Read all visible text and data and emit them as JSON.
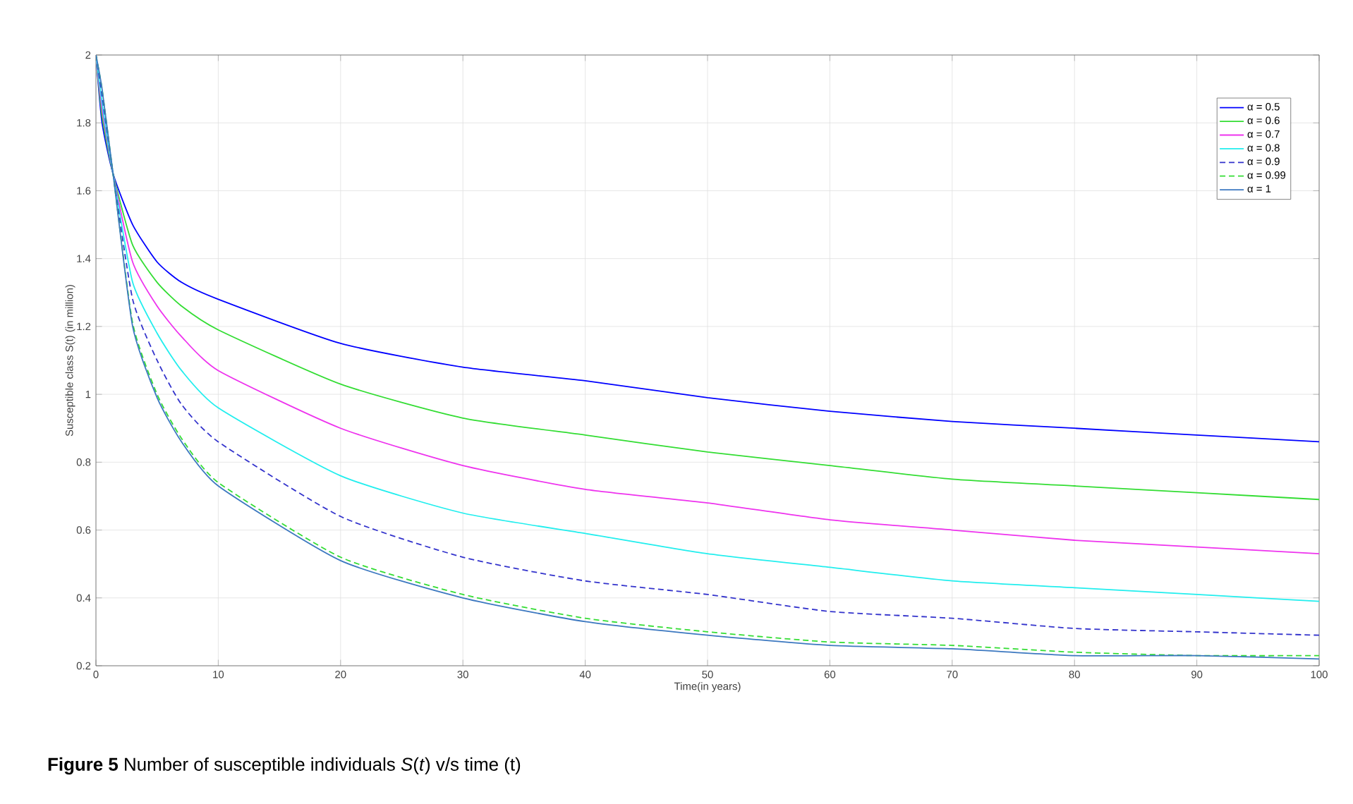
{
  "chart_data": {
    "type": "line",
    "xlabel": "Time(in years)",
    "ylabel": "Susceptible class S(t) (in million)",
    "annotations": [
      "**Figure 5**  Number of susceptible individuals *S*(*t*) v/s time (t)"
    ],
    "x": [
      0,
      0.5,
      1.4,
      3,
      5,
      7,
      10,
      20,
      30,
      40,
      50,
      60,
      70,
      80,
      90,
      100
    ],
    "series": [
      {
        "name": "α = 0.5",
        "color": "#0000ff",
        "line_style": "solid",
        "values": [
          2.0,
          1.8,
          1.65,
          1.5,
          1.39,
          1.33,
          1.28,
          1.15,
          1.08,
          1.04,
          0.99,
          0.95,
          0.92,
          0.9,
          0.88,
          0.86
        ]
      },
      {
        "name": "α = 0.6",
        "color": "#33dd33",
        "line_style": "solid",
        "values": [
          2.0,
          1.82,
          1.65,
          1.44,
          1.33,
          1.26,
          1.19,
          1.03,
          0.93,
          0.88,
          0.83,
          0.79,
          0.75,
          0.73,
          0.71,
          0.69
        ]
      },
      {
        "name": "α = 0.7",
        "color": "#ee33ee",
        "line_style": "solid",
        "values": [
          2.0,
          1.84,
          1.65,
          1.39,
          1.26,
          1.17,
          1.07,
          0.9,
          0.79,
          0.72,
          0.68,
          0.63,
          0.6,
          0.57,
          0.55,
          0.53
        ]
      },
      {
        "name": "α = 0.8",
        "color": "#22eeee",
        "line_style": "solid",
        "values": [
          2.0,
          1.86,
          1.65,
          1.33,
          1.18,
          1.07,
          0.96,
          0.76,
          0.65,
          0.59,
          0.53,
          0.49,
          0.45,
          0.43,
          0.41,
          0.39
        ]
      },
      {
        "name": "α = 0.9",
        "color": "#3333cc",
        "line_style": "dashed",
        "values": [
          2.0,
          1.88,
          1.65,
          1.28,
          1.1,
          0.97,
          0.86,
          0.64,
          0.52,
          0.45,
          0.41,
          0.36,
          0.34,
          0.31,
          0.3,
          0.29
        ]
      },
      {
        "name": "α = 0.99",
        "color": "#33dd33",
        "line_style": "dashed",
        "values": [
          2.0,
          1.9,
          1.65,
          1.21,
          1.0,
          0.87,
          0.74,
          0.52,
          0.41,
          0.34,
          0.3,
          0.27,
          0.26,
          0.24,
          0.23,
          0.23
        ]
      },
      {
        "name": "α = 1",
        "color": "#3c78c0",
        "line_style": "solid",
        "values": [
          2.0,
          1.9,
          1.65,
          1.2,
          0.99,
          0.86,
          0.73,
          0.51,
          0.4,
          0.33,
          0.29,
          0.26,
          0.25,
          0.23,
          0.23,
          0.22
        ]
      }
    ],
    "xlim": [
      0,
      100
    ],
    "xticks": [
      0,
      10,
      20,
      30,
      40,
      50,
      60,
      70,
      80,
      90,
      100
    ],
    "ylim": [
      0.2,
      2
    ],
    "yticks": [
      0.2,
      0.4,
      0.6,
      0.8,
      1,
      1.2,
      1.4,
      1.6,
      1.8,
      2
    ],
    "grid": true,
    "legend": "top right",
    "marker": "none"
  }
}
